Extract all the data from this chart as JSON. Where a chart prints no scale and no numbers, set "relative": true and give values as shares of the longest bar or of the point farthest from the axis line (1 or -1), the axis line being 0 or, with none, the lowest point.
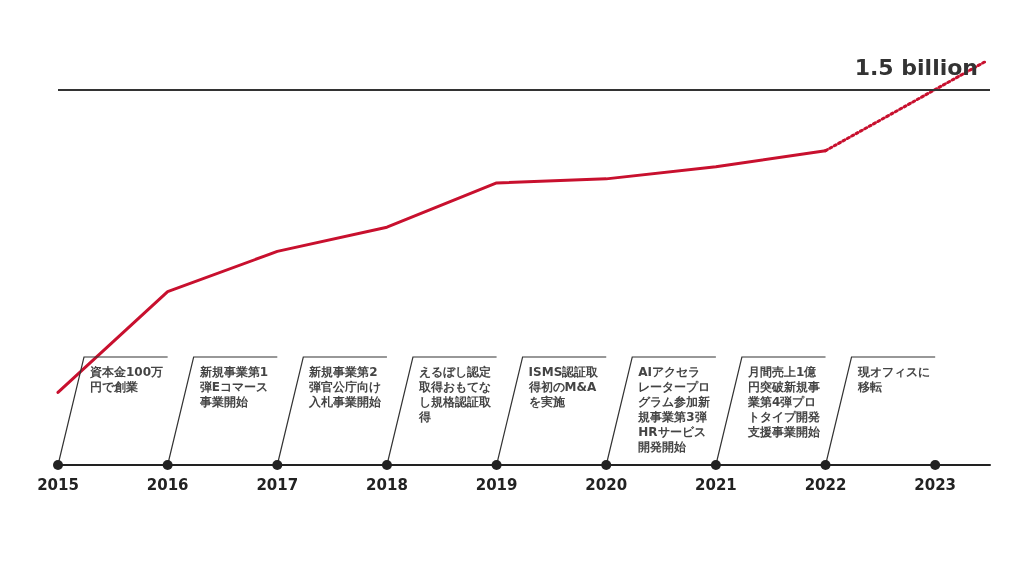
{
  "chart_data": {
    "type": "line",
    "relative": true,
    "grid": false,
    "tick_labels": "x",
    "marker": "none",
    "xlim": [
      2015,
      2023.5
    ],
    "xticks": [
      2015,
      2016,
      2017,
      2018,
      2019,
      2020,
      2021,
      2022,
      2023
    ],
    "series": [
      {
        "color": "#c8102e",
        "line_style": "solid",
        "x": [
          2015,
          2016,
          2017,
          2018,
          2019,
          2020,
          2021,
          2022
        ],
        "values": [
          0.18,
          0.43,
          0.53,
          0.59,
          0.7,
          0.71,
          0.74,
          0.78
        ]
      },
      {
        "color": "#c8102e",
        "line_style": "dotted",
        "x": [
          2022,
          2023.45
        ],
        "values": [
          0.78,
          1
        ]
      }
    ],
    "ref_lines": [
      {
        "axis": "y",
        "value": 0.93,
        "label": "1.5 billion",
        "color": "#333333"
      }
    ],
    "annotations": [
      "資本金100万円で創業",
      "新規事業第1弾Eコマース事業開始",
      "新規事業第2弾官公庁向け入札事業開始",
      "えるぼし認定取得おもてなし規格認証取得",
      "ISMS認証取得初のM&Aを実施",
      "AIアクセラレータープログラム参加新規事業第3弾HRサービス開発開始",
      "月間売上1億円突破新規事業第4弾プロトタイプ開発支援事業開始",
      "現オフィスに移転"
    ]
  }
}
